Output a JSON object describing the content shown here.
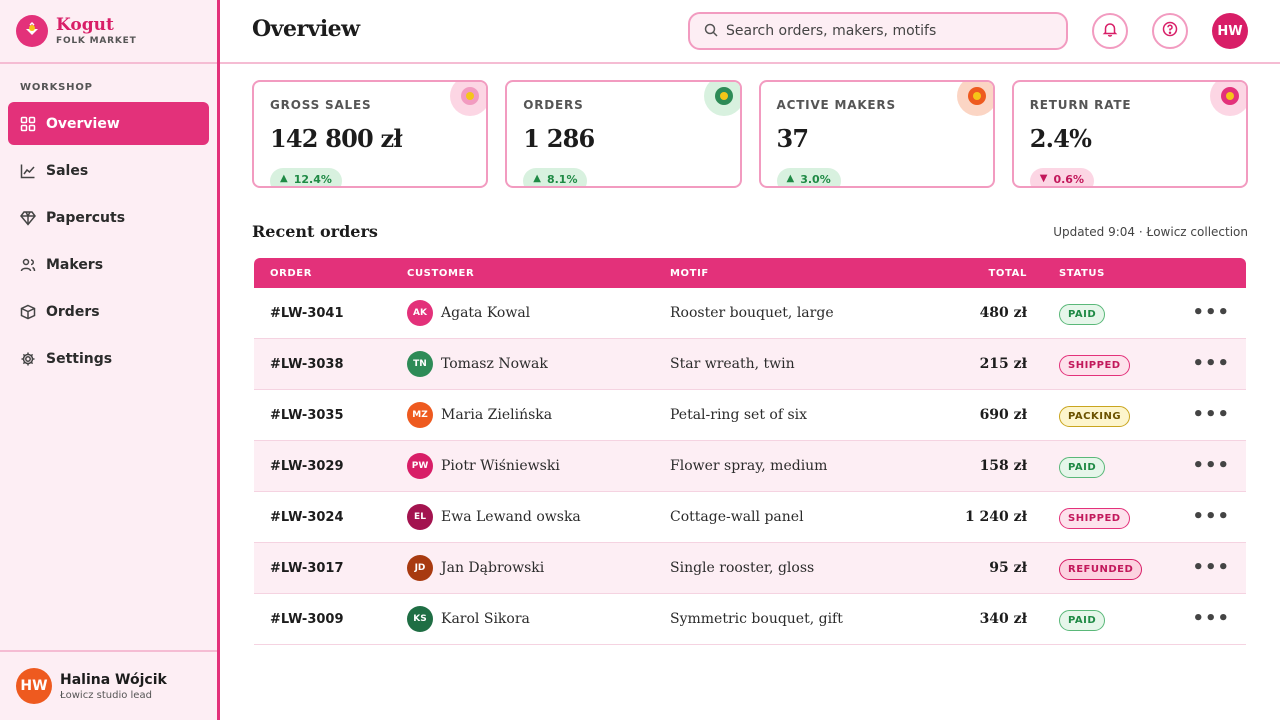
{
  "brand": {
    "name": "Kogut",
    "subtitle": "FOLK MARKET"
  },
  "sidebar": {
    "section_label": "WORKSHOP",
    "items": [
      {
        "label": "Overview",
        "icon": "grid-icon",
        "active": true
      },
      {
        "label": "Sales",
        "icon": "chart-line-icon",
        "active": false
      },
      {
        "label": "Papercuts",
        "icon": "diamond-icon",
        "active": false
      },
      {
        "label": "Makers",
        "icon": "users-icon",
        "active": false
      },
      {
        "label": "Orders",
        "icon": "box-icon",
        "active": false
      },
      {
        "label": "Settings",
        "icon": "gear-icon",
        "active": false
      }
    ]
  },
  "user": {
    "initials": "HW",
    "name": "Halina Wójcik",
    "role": "Łowicz studio lead"
  },
  "header": {
    "title": "Overview",
    "search_placeholder": "Search orders, makers, motifs",
    "avatar_initials": "HW"
  },
  "kpis": [
    {
      "label": "GROSS SALES",
      "value": "142 800 zł",
      "delta": "12.4%",
      "direction": "up",
      "dot_color": "#f29bc0"
    },
    {
      "label": "ORDERS",
      "value": "1 286",
      "delta": "8.1%",
      "direction": "up",
      "dot_color": "#2e8b57"
    },
    {
      "label": "ACTIVE MAKERS",
      "value": "37",
      "delta": "3.0%",
      "direction": "up",
      "dot_color": "#ee5a1f"
    },
    {
      "label": "RETURN RATE",
      "value": "2.4%",
      "delta": "0.6%",
      "direction": "down",
      "dot_color": "#e3317a"
    }
  ],
  "orders": {
    "title": "Recent orders",
    "meta": "Updated 9:04 · Łowicz collection",
    "columns": {
      "order": "ORDER",
      "customer": "CUSTOMER",
      "motif": "MOTIF",
      "total": "TOTAL",
      "status": "STATUS"
    },
    "rows": [
      {
        "id": "#LW-3041",
        "initials": "AK",
        "avatar_color": "#e3317a",
        "customer": "Agata Kowal",
        "motif": "Rooster bouquet, large",
        "total": "480 zł",
        "status": "PAID",
        "status_kind": "paid"
      },
      {
        "id": "#LW-3038",
        "initials": "TN",
        "avatar_color": "#2e8b57",
        "customer": "Tomasz Nowak",
        "motif": "Star wreath, twin",
        "total": "215 zł",
        "status": "SHIPPED",
        "status_kind": "shipped"
      },
      {
        "id": "#LW-3035",
        "initials": "MZ",
        "avatar_color": "#ee5a1f",
        "customer": "Maria Zielińska",
        "motif": "Petal-ring set of six",
        "total": "690 zł",
        "status": "PACKING",
        "status_kind": "packing"
      },
      {
        "id": "#LW-3029",
        "initials": "PW",
        "avatar_color": "#d81e67",
        "customer": "Piotr Wiśniewski",
        "motif": "Flower spray, medium",
        "total": "158 zł",
        "status": "PAID",
        "status_kind": "paid"
      },
      {
        "id": "#LW-3024",
        "initials": "EL",
        "avatar_color": "#a3134f",
        "customer": "Ewa Lewand owska",
        "motif": "Cottage-wall panel",
        "total": "1 240 zł",
        "status": "SHIPPED",
        "status_kind": "shipped"
      },
      {
        "id": "#LW-3017",
        "initials": "JD",
        "avatar_color": "#a83a10",
        "customer": "Jan Dąbrowski",
        "motif": "Single rooster, gloss",
        "total": "95 zł",
        "status": "REFUNDED",
        "status_kind": "refunded"
      },
      {
        "id": "#LW-3009",
        "initials": "KS",
        "avatar_color": "#1f6e44",
        "customer": "Karol Sikora",
        "motif": "Symmetric bouquet, gift",
        "total": "340 zł",
        "status": "PAID",
        "status_kind": "paid"
      }
    ]
  }
}
